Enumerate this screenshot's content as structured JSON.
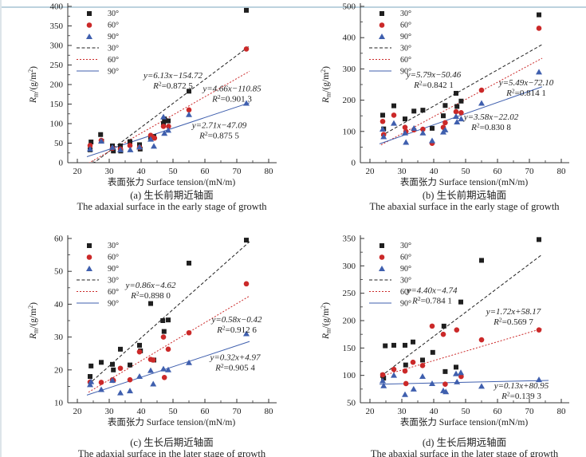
{
  "page": {
    "top_rule_color": "#bcd2de",
    "left_rule_color": "#dde4e9",
    "background": "#ffffff"
  },
  "colors": {
    "s30": "#1f1f1f",
    "s60": "#cb2929",
    "s90": "#3f5fae",
    "axis": "#333333"
  },
  "xlabel": "表面张力 Surface tension/(mN/m)",
  "ylabel": {
    "var": "R",
    "sub": "m",
    "unit_pre": "/(g/m",
    "sup": "2",
    "unit_post": ")"
  },
  "legend_labels": [
    "30°",
    "60°",
    "90°"
  ],
  "chart_data": [
    {
      "type": "scatter",
      "id": "a",
      "caption_zh": "(a) 生长前期近轴面",
      "caption_en": "The adaxial surface in the early stage of growth",
      "xlim": [
        17,
        82
      ],
      "ylim": [
        0,
        400
      ],
      "xticks": [
        20,
        30,
        40,
        50,
        60,
        70,
        80
      ],
      "yticks": [
        0,
        50,
        100,
        150,
        200,
        250,
        300,
        350,
        400
      ],
      "x_minor_step": 5,
      "y_minor_step": 25,
      "series": [
        {
          "name": "30°",
          "marker": "square",
          "color_key": "s30",
          "points": [
            [
              24,
              33
            ],
            [
              24.3,
              53
            ],
            [
              27.3,
              72
            ],
            [
              27.6,
              55
            ],
            [
              31,
              43
            ],
            [
              31.3,
              30
            ],
            [
              33.5,
              43
            ],
            [
              33.6,
              30
            ],
            [
              36.5,
              54
            ],
            [
              39.5,
              46
            ],
            [
              39.7,
              35
            ],
            [
              43,
              65
            ],
            [
              44,
              67
            ],
            [
              47,
              100
            ],
            [
              47.3,
              112
            ],
            [
              48.5,
              107
            ],
            [
              55,
              183
            ],
            [
              73,
              390
            ]
          ]
        },
        {
          "name": "60°",
          "marker": "circle",
          "color_key": "s60",
          "points": [
            [
              24,
              44
            ],
            [
              27.5,
              57
            ],
            [
              31,
              37
            ],
            [
              33.5,
              35
            ],
            [
              36.5,
              44
            ],
            [
              39.5,
              39
            ],
            [
              43,
              70
            ],
            [
              43.6,
              65
            ],
            [
              44.2,
              63
            ],
            [
              47,
              93
            ],
            [
              48.6,
              93
            ],
            [
              55,
              135
            ],
            [
              73,
              291
            ]
          ]
        },
        {
          "name": "90°",
          "marker": "triangle",
          "color_key": "s90",
          "points": [
            [
              24,
              35
            ],
            [
              27.5,
              55
            ],
            [
              31,
              39
            ],
            [
              33.5,
              33
            ],
            [
              36.6,
              33
            ],
            [
              39.5,
              40
            ],
            [
              43,
              60
            ],
            [
              44,
              42
            ],
            [
              47,
              117
            ],
            [
              47.3,
              75
            ],
            [
              48.5,
              83
            ],
            [
              55,
              123
            ],
            [
              73,
              152
            ]
          ]
        }
      ],
      "fits": [
        {
          "name": "30°",
          "color_key": "s30",
          "dash": "4,2.5",
          "slope": 6.13,
          "intercept": -154.72,
          "x1": 23.5,
          "x2": 74,
          "eq": "y=6.13x−154.72",
          "r2": "0.872 5",
          "label_x": 50,
          "label_y": 216
        },
        {
          "name": "60°",
          "color_key": "s60",
          "dash": "2,2",
          "slope": 4.66,
          "intercept": -110.85,
          "x1": 23.5,
          "x2": 74,
          "eq": "y=4.66x−110.85",
          "r2": "0.901 3",
          "label_x": 68.5,
          "label_y": 183
        },
        {
          "name": "90°",
          "color_key": "s90",
          "dash": "",
          "slope": 2.71,
          "intercept": -47.09,
          "x1": 23,
          "x2": 74,
          "eq": "y=2.71x−47.09",
          "r2": "0.875 5",
          "label_x": 64.5,
          "label_y": 89
        }
      ]
    },
    {
      "type": "scatter",
      "id": "b",
      "caption_zh": "(b) 生长前期远轴面",
      "caption_en": "The abaxial surface in the early stage of growth",
      "xlim": [
        17,
        82
      ],
      "ylim": [
        0,
        500
      ],
      "xticks": [
        20,
        30,
        40,
        50,
        60,
        70,
        80
      ],
      "yticks": [
        0,
        100,
        200,
        300,
        400,
        500
      ],
      "x_minor_step": 5,
      "y_minor_step": 50,
      "series": [
        {
          "name": "30°",
          "marker": "square",
          "color_key": "s30",
          "points": [
            [
              24,
              152
            ],
            [
              24.3,
              108
            ],
            [
              27.5,
              182
            ],
            [
              31,
              140
            ],
            [
              33.8,
              165
            ],
            [
              36.6,
              168
            ],
            [
              39.5,
              110
            ],
            [
              43,
              150
            ],
            [
              43.6,
              183
            ],
            [
              47,
              222
            ],
            [
              47.3,
              180
            ],
            [
              48.6,
              197
            ],
            [
              73,
              473
            ]
          ]
        },
        {
          "name": "60°",
          "marker": "circle",
          "color_key": "s60",
          "points": [
            [
              24,
              132
            ],
            [
              24.3,
              90
            ],
            [
              27.5,
              152
            ],
            [
              31,
              113
            ],
            [
              31.3,
              100
            ],
            [
              33.8,
              105
            ],
            [
              36.6,
              107
            ],
            [
              39.5,
              62
            ],
            [
              43,
              113
            ],
            [
              43.6,
              128
            ],
            [
              47,
              163
            ],
            [
              48.6,
              160
            ],
            [
              55,
              232
            ],
            [
              73,
              430
            ]
          ]
        },
        {
          "name": "90°",
          "marker": "triangle",
          "color_key": "s90",
          "points": [
            [
              24,
              107
            ],
            [
              24.3,
              83
            ],
            [
              27.5,
              126
            ],
            [
              31,
              95
            ],
            [
              31.3,
              65
            ],
            [
              33.8,
              110
            ],
            [
              36.6,
              95
            ],
            [
              39.5,
              70
            ],
            [
              43,
              98
            ],
            [
              43.6,
              105
            ],
            [
              47,
              148
            ],
            [
              47.3,
              130
            ],
            [
              48.6,
              140
            ],
            [
              55,
              190
            ],
            [
              73,
              290
            ]
          ]
        }
      ],
      "fits": [
        {
          "name": "30°",
          "color_key": "s30",
          "dash": "4,2.5",
          "slope": 5.79,
          "intercept": -50.46,
          "x1": 23.5,
          "x2": 74,
          "eq": "y=5.79x−50.46",
          "r2": "0.842 1",
          "label_x": 40,
          "label_y": 273
        },
        {
          "name": "60°",
          "color_key": "s60",
          "dash": "2,2",
          "slope": 5.49,
          "intercept": -72.1,
          "x1": 23.5,
          "x2": 74,
          "eq": "y=5.49x−72.10",
          "r2": "0.814 1",
          "label_x": 69,
          "label_y": 247
        },
        {
          "name": "90°",
          "color_key": "s90",
          "dash": "",
          "slope": 3.58,
          "intercept": -22.02,
          "x1": 23,
          "x2": 74,
          "eq": "y=3.58x−22.02",
          "r2": "0.830 8",
          "label_x": 58,
          "label_y": 138
        }
      ]
    },
    {
      "type": "scatter",
      "id": "c",
      "caption_zh": "(c) 生长后期近轴面",
      "caption_en": "The adaxial surface in the later stage of growth",
      "xlim": [
        17,
        82
      ],
      "ylim": [
        10,
        60
      ],
      "xticks": [
        20,
        30,
        40,
        50,
        60,
        70,
        80
      ],
      "yticks": [
        10,
        20,
        30,
        40,
        50,
        60
      ],
      "x_minor_step": 5,
      "y_minor_step": 5,
      "series": [
        {
          "name": "30°",
          "marker": "square",
          "color_key": "s30",
          "points": [
            [
              24,
              18
            ],
            [
              24.3,
              21.2
            ],
            [
              27.5,
              22.3
            ],
            [
              31,
              21.7
            ],
            [
              31.3,
              20
            ],
            [
              33.5,
              26.3
            ],
            [
              36.5,
              21.5
            ],
            [
              39.5,
              27.5
            ],
            [
              39.8,
              25.8
            ],
            [
              43,
              40.2
            ],
            [
              44,
              23
            ],
            [
              46.8,
              35
            ],
            [
              47.2,
              31.7
            ],
            [
              48.5,
              35.2
            ],
            [
              55,
              52.5
            ],
            [
              73,
              59.5
            ]
          ]
        },
        {
          "name": "60°",
          "marker": "circle",
          "color_key": "s60",
          "points": [
            [
              24,
              16.3
            ],
            [
              27.5,
              16.2
            ],
            [
              31,
              17
            ],
            [
              31.3,
              16.8
            ],
            [
              33.5,
              20.5
            ],
            [
              36.5,
              17
            ],
            [
              39.5,
              25.5
            ],
            [
              43,
              23.2
            ],
            [
              43.8,
              23
            ],
            [
              47,
              30
            ],
            [
              47.3,
              17.7
            ],
            [
              48.5,
              26.3
            ],
            [
              55,
              31.3
            ],
            [
              73,
              46.2
            ]
          ]
        },
        {
          "name": "90°",
          "marker": "triangle",
          "color_key": "s90",
          "points": [
            [
              24,
              15.5
            ],
            [
              24.3,
              16.4
            ],
            [
              27.5,
              14
            ],
            [
              31,
              16.8
            ],
            [
              33.5,
              13
            ],
            [
              36.5,
              13.6
            ],
            [
              39.5,
              18
            ],
            [
              43,
              19.8
            ],
            [
              43.8,
              15.7
            ],
            [
              47,
              20.3
            ],
            [
              48.5,
              20
            ],
            [
              55,
              22.2
            ],
            [
              73,
              31
            ]
          ]
        }
      ],
      "fits": [
        {
          "name": "30°",
          "color_key": "s30",
          "dash": "4,2.5",
          "slope": 0.86,
          "intercept": -4.62,
          "x1": 23.5,
          "x2": 74,
          "eq": "y=0.86x−4.62",
          "r2": "0.898 0",
          "label_x": 43,
          "label_y": 45
        },
        {
          "name": "60°",
          "color_key": "s60",
          "dash": "2,2",
          "slope": 0.58,
          "intercept": -0.42,
          "x1": 23.5,
          "x2": 74,
          "eq": "y=0.58x−0.42",
          "r2": "0.912 6",
          "label_x": 70,
          "label_y": 34.5
        },
        {
          "name": "90°",
          "color_key": "s90",
          "dash": "",
          "slope": 0.32,
          "intercept": 4.97,
          "x1": 23,
          "x2": 74,
          "eq": "y=0.32x+4.97",
          "r2": "0.905 4",
          "label_x": 69.5,
          "label_y": 23
        }
      ]
    },
    {
      "type": "scatter",
      "id": "d",
      "caption_zh": "(d) 生长后期远轴面",
      "caption_en": "The abaxial surface in the later stage of growth",
      "xlim": [
        17,
        82
      ],
      "ylim": [
        50,
        350
      ],
      "xticks": [
        20,
        30,
        40,
        50,
        60,
        70,
        80
      ],
      "yticks": [
        50,
        100,
        150,
        200,
        250,
        300,
        350
      ],
      "x_minor_step": 5,
      "y_minor_step": 25,
      "series": [
        {
          "name": "30°",
          "marker": "square",
          "color_key": "s30",
          "points": [
            [
              24,
              100
            ],
            [
              24.3,
              95
            ],
            [
              24.8,
              154
            ],
            [
              27.5,
              155
            ],
            [
              31,
              155
            ],
            [
              31.2,
              119
            ],
            [
              33.5,
              161
            ],
            [
              36.5,
              128
            ],
            [
              39.7,
              142
            ],
            [
              43.2,
              190
            ],
            [
              43.6,
              107
            ],
            [
              47,
              115
            ],
            [
              48.5,
              234
            ],
            [
              55,
              310
            ],
            [
              73,
              348
            ]
          ]
        },
        {
          "name": "60°",
          "marker": "circle",
          "color_key": "s60",
          "points": [
            [
              24,
              101
            ],
            [
              27.5,
              111
            ],
            [
              31,
              108
            ],
            [
              31.3,
              85
            ],
            [
              33.5,
              124
            ],
            [
              36.5,
              118
            ],
            [
              39.5,
              190
            ],
            [
              43,
              175
            ],
            [
              43.6,
              84
            ],
            [
              47.2,
              183
            ],
            [
              48.6,
              98
            ],
            [
              55,
              165
            ],
            [
              73,
              183
            ]
          ]
        },
        {
          "name": "90°",
          "marker": "triangle",
          "color_key": "s90",
          "points": [
            [
              24,
              90
            ],
            [
              24.3,
              81
            ],
            [
              27.5,
              100
            ],
            [
              31,
              65
            ],
            [
              33.7,
              75
            ],
            [
              36.5,
              98
            ],
            [
              39.5,
              85
            ],
            [
              43,
              72
            ],
            [
              43.8,
              70
            ],
            [
              47,
              103
            ],
            [
              47.3,
              88
            ],
            [
              48.5,
              105
            ],
            [
              55,
              80
            ],
            [
              73,
              92
            ]
          ]
        }
      ],
      "fits": [
        {
          "name": "30°",
          "color_key": "s30",
          "dash": "4,2.5",
          "slope": 4.4,
          "intercept": -4.74,
          "x1": 23.5,
          "x2": 74,
          "eq": "y=4.40x−4.74",
          "r2": "0.784 1",
          "label_x": 39.5,
          "label_y": 250
        },
        {
          "name": "60°",
          "color_key": "s60",
          "dash": "2,2",
          "slope": 1.72,
          "intercept": 58.17,
          "x1": 23.5,
          "x2": 74,
          "eq": "y=1.72x+58.17",
          "r2": "0.569 7",
          "label_x": 65,
          "label_y": 212
        },
        {
          "name": "90°",
          "color_key": "s90",
          "dash": "",
          "slope": 0.13,
          "intercept": 80.95,
          "x1": 23,
          "x2": 76,
          "eq": "y=0.13x+80.95",
          "r2": "0.139 3",
          "label_x": 67.5,
          "label_y": 76
        }
      ]
    }
  ]
}
